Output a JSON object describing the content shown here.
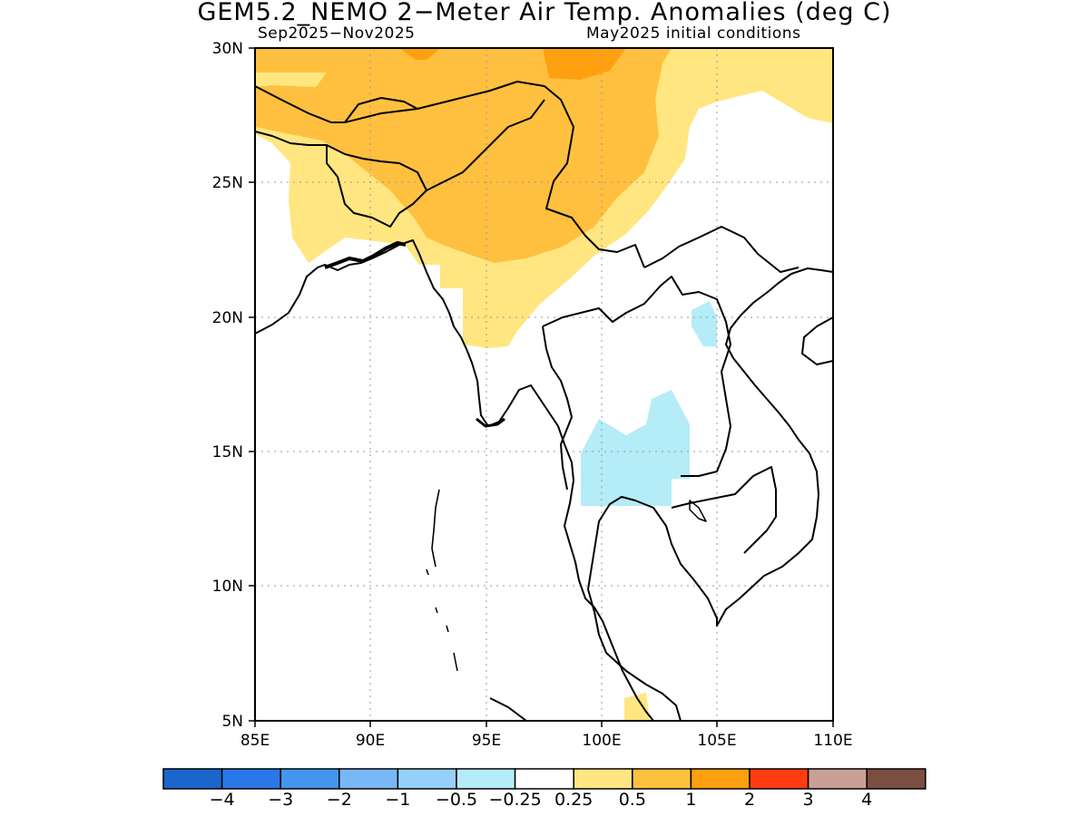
{
  "title": "GEM5.2_NEMO 2−Meter Air Temp. Anomalies (deg C)",
  "subtitle_left": "Sep2025−Nov2025",
  "subtitle_right": "May2025 initial conditions",
  "map": {
    "lon_range": [
      85,
      110
    ],
    "lat_range": [
      5,
      30
    ],
    "x_ticks": [
      "85E",
      "90E",
      "95E",
      "100E",
      "105E",
      "110E"
    ],
    "y_ticks": [
      "5N",
      "10N",
      "15N",
      "20N",
      "25N",
      "30N"
    ],
    "grid": "dotted"
  },
  "colorbar": {
    "colors": [
      "#1a66cc",
      "#2a78e8",
      "#4396f0",
      "#78b8f6",
      "#96d0fa",
      "#b4ecf8",
      "#ffffff",
      "#ffe680",
      "#ffc040",
      "#ffa010",
      "#ff3c10",
      "#c8a096",
      "#7a4e40"
    ],
    "labels": [
      "−4",
      "−3",
      "−2",
      "−1",
      "−0.5",
      "−0.25",
      "0.25",
      "0.5",
      "1",
      "2",
      "3",
      "4"
    ]
  },
  "anomaly_regions": [
    {
      "name": "warm-0.5-north",
      "level": "0.25 to 0.5",
      "color": "#ffe680"
    },
    {
      "name": "warm-1-north",
      "level": "0.5 to 1",
      "color": "#ffc040"
    },
    {
      "name": "warm-2-patches",
      "level": "1 to 2",
      "color": "#ffa010"
    },
    {
      "name": "cool-thailand",
      "level": "-0.5 to -0.25",
      "color": "#b4ecf8"
    },
    {
      "name": "cool-laos",
      "level": "-0.5 to -0.25",
      "color": "#b4ecf8"
    },
    {
      "name": "warm-malay",
      "level": "0.25 to 0.5",
      "color": "#ffe680"
    }
  ]
}
